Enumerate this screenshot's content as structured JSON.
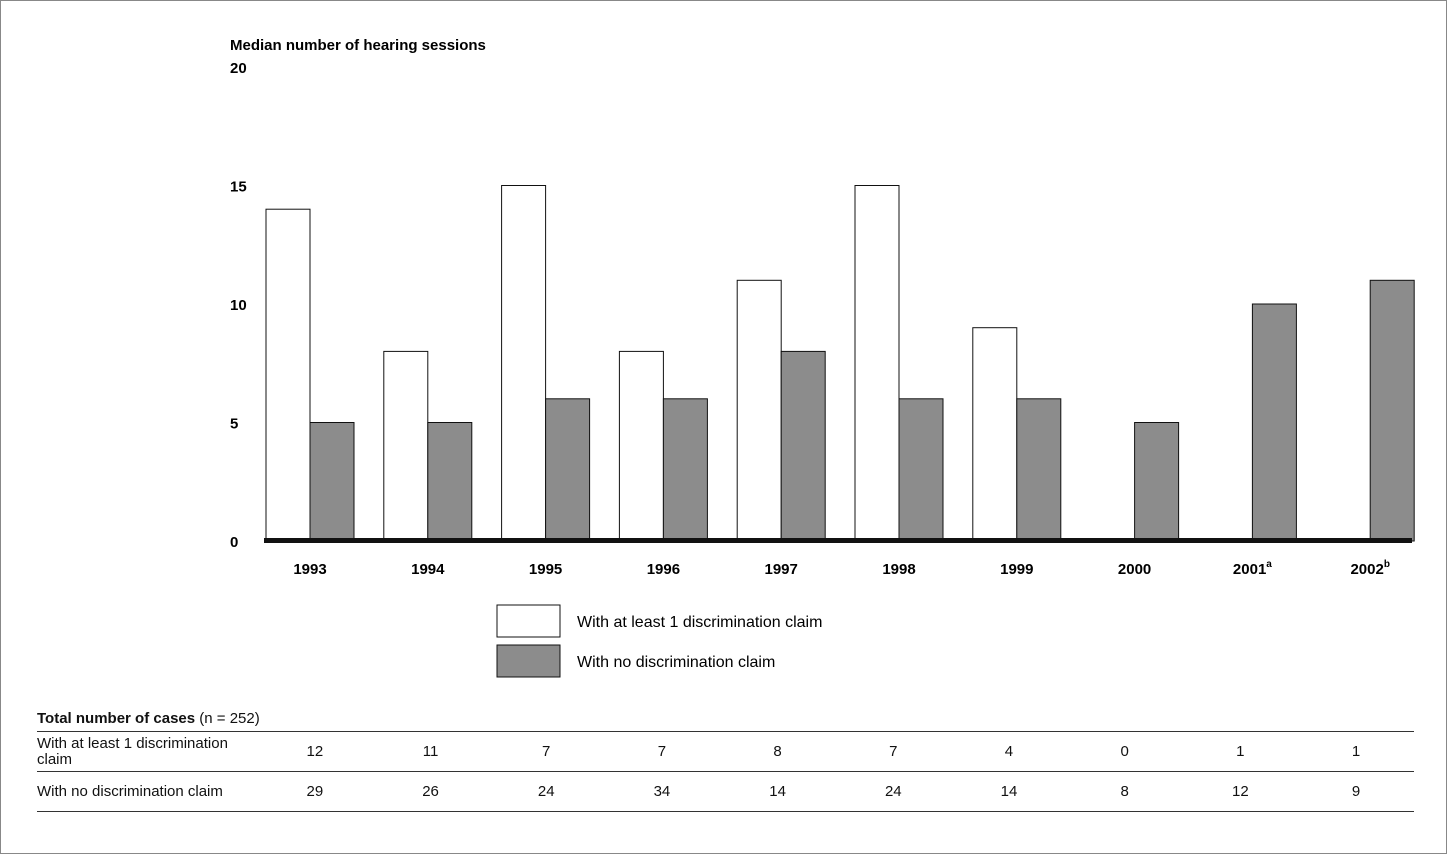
{
  "chart_data": {
    "type": "bar",
    "ylabel": "Median number of hearing sessions",
    "ylim": [
      0,
      20
    ],
    "yticks": [
      0,
      5,
      10,
      15,
      20
    ],
    "categories": [
      "1993",
      "1994",
      "1995",
      "1996",
      "1997",
      "1998",
      "1999",
      "2000",
      "2001",
      "2002"
    ],
    "category_superscripts": [
      "",
      "",
      "",
      "",
      "",
      "",
      "",
      "",
      "a",
      "b"
    ],
    "series": [
      {
        "name": "With at least 1 discrimination claim",
        "color": "#ffffff",
        "values": [
          14,
          8,
          15,
          8,
          11,
          15,
          9,
          0,
          0,
          0
        ]
      },
      {
        "name": "With no discrimination claim",
        "color": "#8c8c8c",
        "values": [
          5,
          5,
          6,
          6,
          8,
          6,
          6,
          5,
          10,
          11
        ]
      }
    ],
    "legend_position": "bottom-center",
    "grid": false
  },
  "table": {
    "title_bold": "Total number of cases",
    "title_rest": " (n = 252)",
    "rows": [
      {
        "label": "With at least 1 discrimination claim",
        "values": [
          "12",
          "11",
          "7",
          "7",
          "8",
          "7",
          "4",
          "0",
          "1",
          "1"
        ]
      },
      {
        "label": "With no discrimination claim",
        "values": [
          "29",
          "26",
          "24",
          "34",
          "14",
          "24",
          "14",
          "8",
          "12",
          "9"
        ]
      }
    ]
  }
}
